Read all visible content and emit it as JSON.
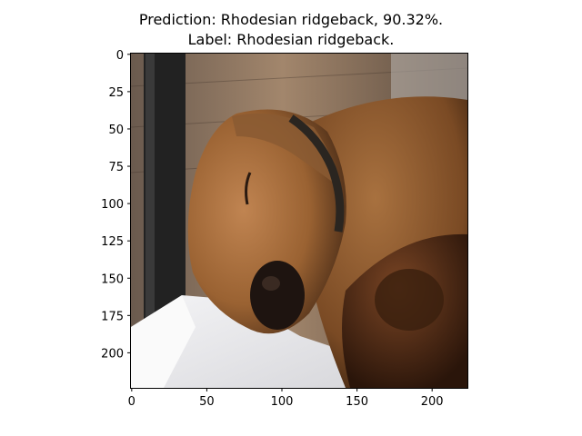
{
  "figure": {
    "title_line1": "Prediction: Rhodesian ridgeback, 90.32%.",
    "title_line2": "Label: Rhodesian ridgeback."
  },
  "image": {
    "description_icon": "photo-sleeping-dog"
  },
  "chart_data": {
    "type": "image",
    "xlim": [
      0,
      224
    ],
    "ylim": [
      224,
      0
    ],
    "xticks": [
      0,
      50,
      100,
      150,
      200
    ],
    "yticks": [
      0,
      25,
      50,
      75,
      100,
      125,
      150,
      175,
      200
    ],
    "xlabel": "",
    "ylabel": "",
    "grid": false
  }
}
